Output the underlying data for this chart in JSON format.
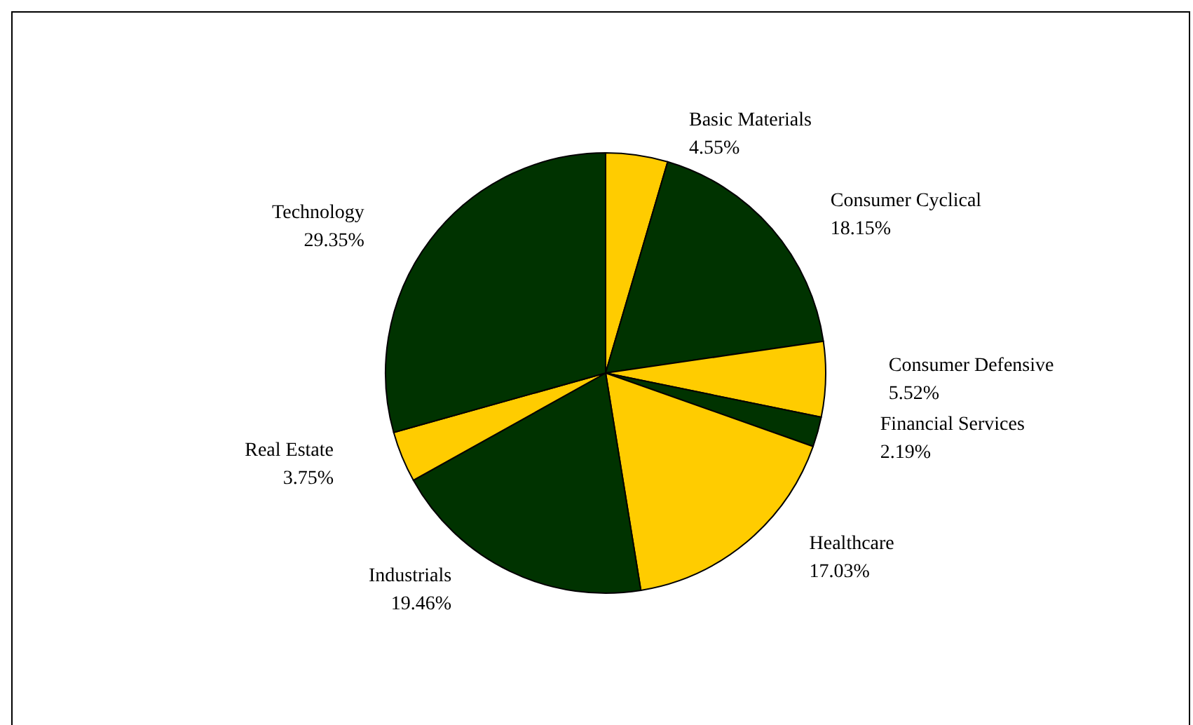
{
  "chart_data": {
    "type": "pie",
    "categories": [
      "Basic Materials",
      "Consumer Cyclical",
      "Consumer Defensive",
      "Financial Services",
      "Healthcare",
      "Industrials",
      "Real Estate",
      "Technology"
    ],
    "values": [
      4.55,
      18.15,
      5.52,
      2.19,
      17.03,
      19.46,
      3.75,
      29.35
    ],
    "value_labels": [
      "4.55%",
      "18.15%",
      "5.52%",
      "2.19%",
      "17.03%",
      "19.46%",
      "3.75%",
      "29.35%"
    ],
    "colors": [
      "#ffcc00",
      "#003300",
      "#ffcc00",
      "#003300",
      "#ffcc00",
      "#003300",
      "#ffcc00",
      "#003300"
    ],
    "legend": false
  }
}
